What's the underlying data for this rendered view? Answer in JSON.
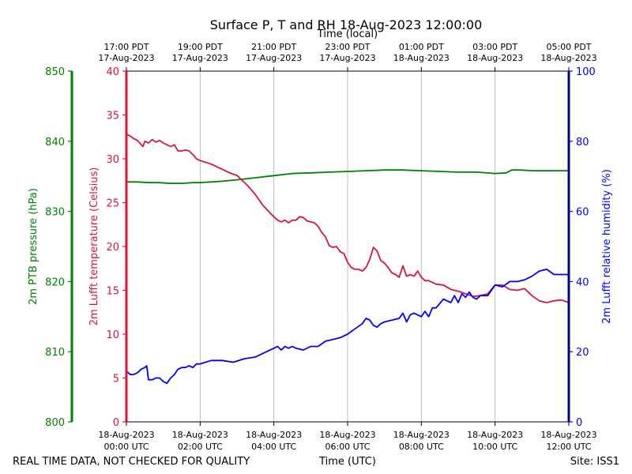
{
  "chart_data": {
    "type": "line",
    "title": "Surface P, T and RH 18-Aug-2023 12:00:00",
    "top_axis_label": "Time (local)",
    "bottom_axis_label": "Time (UTC)",
    "footer_left": "REAL TIME DATA, NOT CHECKED FOR QUALITY",
    "footer_right": "Site: ISS1",
    "x_range_hours_utc": [
      0,
      12
    ],
    "grid": "vertical",
    "x_ticks_utc": [
      {
        "h": 0,
        "line1": "18-Aug-2023",
        "line2": "00:00 UTC"
      },
      {
        "h": 2,
        "line1": "18-Aug-2023",
        "line2": "02:00 UTC"
      },
      {
        "h": 4,
        "line1": "18-Aug-2023",
        "line2": "04:00 UTC"
      },
      {
        "h": 6,
        "line1": "18-Aug-2023",
        "line2": "06:00 UTC"
      },
      {
        "h": 8,
        "line1": "18-Aug-2023",
        "line2": "08:00 UTC"
      },
      {
        "h": 10,
        "line1": "18-Aug-2023",
        "line2": "10:00 UTC"
      },
      {
        "h": 12,
        "line1": "18-Aug-2023",
        "line2": "12:00 UTC"
      }
    ],
    "x_ticks_local": [
      {
        "h": 0,
        "line1": "17:00 PDT",
        "line2": "17-Aug-2023"
      },
      {
        "h": 2,
        "line1": "19:00 PDT",
        "line2": "17-Aug-2023"
      },
      {
        "h": 4,
        "line1": "21:00 PDT",
        "line2": "17-Aug-2023"
      },
      {
        "h": 6,
        "line1": "23:00 PDT",
        "line2": "17-Aug-2023"
      },
      {
        "h": 8,
        "line1": "01:00 PDT",
        "line2": "18-Aug-2023"
      },
      {
        "h": 10,
        "line1": "03:00 PDT",
        "line2": "18-Aug-2023"
      },
      {
        "h": 12,
        "line1": "05:00 PDT",
        "line2": "18-Aug-2023"
      }
    ],
    "axes": {
      "pressure": {
        "label": "2m PTB pressure (hPa)",
        "ylim": [
          800,
          850
        ],
        "ticks": [
          "800",
          "810",
          "820",
          "830",
          "840",
          "850"
        ],
        "color": "#008000"
      },
      "temperature": {
        "label": "2m Lufft temperature (Celsius)",
        "ylim": [
          0,
          40
        ],
        "ticks": [
          "0",
          "5",
          "10",
          "15",
          "20",
          "25",
          "30",
          "35",
          "40"
        ],
        "color": "#dc143c"
      },
      "humidity": {
        "label": "2m Lufft relative humidity (%)",
        "ylim": [
          0,
          100
        ],
        "ticks": [
          "0",
          "20",
          "40",
          "60",
          "80",
          "100"
        ],
        "color": "#0000ff"
      }
    },
    "series": [
      {
        "name": "2m PTB pressure",
        "axis": "pressure",
        "color": "#008000",
        "x": [
          0,
          0.3,
          0.6,
          0.9,
          1.2,
          1.5,
          1.8,
          2.0,
          2.3,
          2.6,
          3.0,
          3.5,
          4.0,
          4.5,
          5.0,
          5.5,
          6.0,
          6.5,
          7.0,
          7.5,
          8.0,
          8.5,
          9.0,
          9.5,
          10.0,
          10.3,
          10.45,
          10.7,
          11.0,
          11.5,
          12.0
        ],
        "values": [
          834.2,
          834.2,
          834.1,
          834.1,
          834.0,
          834.0,
          834.1,
          834.1,
          834.2,
          834.3,
          834.5,
          834.8,
          835.1,
          835.4,
          835.5,
          835.6,
          835.7,
          835.8,
          835.9,
          835.9,
          835.8,
          835.7,
          835.6,
          835.6,
          835.4,
          835.5,
          835.9,
          835.9,
          835.8,
          835.8,
          835.8
        ]
      },
      {
        "name": "2m Lufft temperature",
        "axis": "temperature",
        "color": "#dc143c",
        "x": [
          0,
          0.1,
          0.2,
          0.3,
          0.4,
          0.45,
          0.5,
          0.6,
          0.7,
          0.8,
          0.9,
          1.0,
          1.1,
          1.2,
          1.3,
          1.4,
          1.5,
          1.6,
          1.7,
          1.8,
          1.9,
          2.0,
          2.3,
          2.6,
          2.8,
          3.0,
          3.3,
          3.5,
          3.7,
          3.9,
          4.0,
          4.1,
          4.2,
          4.3,
          4.4,
          4.5,
          4.6,
          4.7,
          4.8,
          4.9,
          5.0,
          5.1,
          5.2,
          5.3,
          5.4,
          5.5,
          5.6,
          5.7,
          5.8,
          5.9,
          6.0,
          6.1,
          6.2,
          6.3,
          6.4,
          6.5,
          6.6,
          6.7,
          6.8,
          6.9,
          7.0,
          7.1,
          7.2,
          7.3,
          7.4,
          7.5,
          7.6,
          7.7,
          7.8,
          7.9,
          8.0,
          8.1,
          8.2,
          8.4,
          8.6,
          8.8,
          9.0,
          9.2,
          9.4,
          9.6,
          9.8,
          10.0,
          10.2,
          10.4,
          10.6,
          10.8,
          11.0,
          11.2,
          11.4,
          11.6,
          11.8,
          12.0
        ],
        "values": [
          32.8,
          32.6,
          32.3,
          32.1,
          31.6,
          31.4,
          32.0,
          31.8,
          32.2,
          31.9,
          32.1,
          31.8,
          31.6,
          31.4,
          31.6,
          30.9,
          30.9,
          31.0,
          30.9,
          30.5,
          30.0,
          29.8,
          29.4,
          28.8,
          28.4,
          28.1,
          26.9,
          25.9,
          24.7,
          23.8,
          23.4,
          23.0,
          22.8,
          23.0,
          22.7,
          23.0,
          23.0,
          23.4,
          23.3,
          22.9,
          22.8,
          22.7,
          22.3,
          21.6,
          21.1,
          20.1,
          19.9,
          20.0,
          19.4,
          19.2,
          18.2,
          17.6,
          17.4,
          17.4,
          17.2,
          17.6,
          18.5,
          19.9,
          19.5,
          18.4,
          18.1,
          17.6,
          17.0,
          16.8,
          16.5,
          17.8,
          16.6,
          16.8,
          16.6,
          17.2,
          16.5,
          16.1,
          16.1,
          15.7,
          15.6,
          15.1,
          14.9,
          14.6,
          14.3,
          14.4,
          14.6,
          15.6,
          15.6,
          15.1,
          15.0,
          15.2,
          14.4,
          13.8,
          13.6,
          13.8,
          13.9,
          13.6
        ]
      },
      {
        "name": "2m Lufft relative humidity",
        "axis": "humidity",
        "color": "#0000ff",
        "x": [
          0,
          0.1,
          0.2,
          0.3,
          0.4,
          0.5,
          0.55,
          0.6,
          0.7,
          0.8,
          0.9,
          1.0,
          1.1,
          1.2,
          1.3,
          1.4,
          1.5,
          1.6,
          1.7,
          1.8,
          1.9,
          2.0,
          2.3,
          2.6,
          2.9,
          3.2,
          3.5,
          3.8,
          4.0,
          4.1,
          4.2,
          4.3,
          4.4,
          4.5,
          4.6,
          4.8,
          5.0,
          5.2,
          5.4,
          5.6,
          5.8,
          6.0,
          6.2,
          6.4,
          6.5,
          6.6,
          6.7,
          6.8,
          6.9,
          7.0,
          7.2,
          7.4,
          7.5,
          7.6,
          7.7,
          7.8,
          8.0,
          8.1,
          8.2,
          8.3,
          8.4,
          8.6,
          8.8,
          8.9,
          9.0,
          9.1,
          9.2,
          9.3,
          9.4,
          9.5,
          9.6,
          9.8,
          10.0,
          10.2,
          10.4,
          10.6,
          10.8,
          11.0,
          11.2,
          11.4,
          11.6,
          11.8,
          12.0
        ],
        "values": [
          14.5,
          13.5,
          13.5,
          14.0,
          15.0,
          15.5,
          16.0,
          12.0,
          12.0,
          12.5,
          12.5,
          11.5,
          11.0,
          12.5,
          13.5,
          15.0,
          15.5,
          15.5,
          16.0,
          15.5,
          16.5,
          16.5,
          17.5,
          17.5,
          17.0,
          18.0,
          18.5,
          20.0,
          21.0,
          21.5,
          20.5,
          21.5,
          21.0,
          21.5,
          21.0,
          20.5,
          21.5,
          21.5,
          23.0,
          23.5,
          24.0,
          25.0,
          26.5,
          28.0,
          29.5,
          29.0,
          27.5,
          27.0,
          28.0,
          28.5,
          29.0,
          29.5,
          31.0,
          28.5,
          30.5,
          31.0,
          30.0,
          31.5,
          30.0,
          32.5,
          32.5,
          35.0,
          34.0,
          36.0,
          34.0,
          36.5,
          35.5,
          37.0,
          35.5,
          35.0,
          36.0,
          36.0,
          39.0,
          38.5,
          40.0,
          40.0,
          40.5,
          41.5,
          43.0,
          43.5,
          42.0,
          42.0,
          42.0
        ]
      }
    ]
  }
}
